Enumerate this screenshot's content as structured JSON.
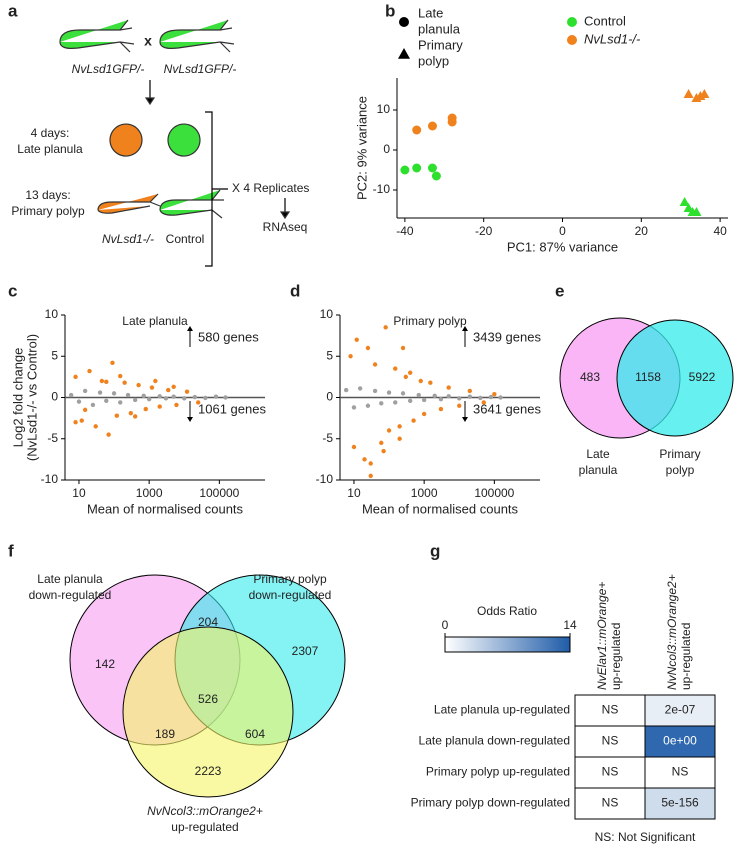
{
  "panel_labels": [
    "a",
    "b",
    "c",
    "d",
    "e",
    "f",
    "g"
  ],
  "schematic": {
    "parents": [
      "NvLsd1GFP/-",
      "NvLsd1GFP/-"
    ],
    "cross": "x",
    "stages": [
      [
        "4 days:",
        "Late planula"
      ],
      [
        "13 days:",
        "Primary polyp"
      ]
    ],
    "genotypes": [
      "NvLsd1-/-",
      "Control"
    ],
    "replicates": "X 4 Replicates",
    "method": "RNAseq"
  },
  "chart_data": [
    {
      "type": "scatter",
      "x_label": "PC1: 87% variance",
      "y_label": "PC2: 9% variance",
      "xlim": [
        -42,
        42
      ],
      "xticks": [
        -40,
        -20,
        0,
        20,
        40
      ],
      "ylim": [
        -17,
        18
      ],
      "yticks": [
        -10,
        0,
        10
      ],
      "marker_legend": [
        {
          "name": [
            "Late",
            "planula"
          ],
          "marker": "circle"
        },
        {
          "name": [
            "Primary",
            "polyp"
          ],
          "marker": "triangle"
        }
      ],
      "series": [
        {
          "name": "Control",
          "color": "#2ee02e",
          "x": [
            -40,
            -37,
            -33,
            -32,
            31,
            32,
            33,
            34
          ],
          "values": [
            -5,
            -4.5,
            -4.5,
            -6.5,
            -13,
            -14.5,
            -15.5,
            -15.5
          ],
          "markers": [
            "circle",
            "circle",
            "circle",
            "circle",
            "triangle",
            "triangle",
            "triangle",
            "triangle"
          ]
        },
        {
          "name": "NvLsd1-/-",
          "color": "#f0821e",
          "x": [
            -37,
            -33,
            -28,
            -28,
            32,
            34,
            35,
            36
          ],
          "values": [
            5,
            6,
            7,
            8,
            14,
            13,
            13.5,
            14
          ],
          "markers": [
            "circle",
            "circle",
            "circle",
            "circle",
            "triangle",
            "triangle",
            "triangle",
            "triangle"
          ]
        }
      ]
    },
    {
      "type": "scatter",
      "title": "Late planula",
      "x_label": "Mean of normalised counts",
      "y_label": [
        "Log2 fold change",
        "(NvLsd1-/- vs Control)"
      ],
      "xscale": "log",
      "xlim": [
        4,
        2000000
      ],
      "xticks": [
        10,
        1000,
        100000
      ],
      "ylim": [
        -10,
        10
      ],
      "yticks": [
        -10,
        -5,
        0,
        5,
        10
      ],
      "reference_line": 0,
      "annotations": [
        {
          "text": "580 genes",
          "arrow": "up"
        },
        {
          "text": "1061 genes",
          "arrow": "down"
        }
      ],
      "series": [
        {
          "color": "#a0a0a0",
          "x": [
            6,
            10,
            15,
            25,
            40,
            60,
            100,
            150,
            250,
            400,
            700,
            1000,
            2000,
            3000,
            5000,
            10000,
            20000,
            40000,
            80000,
            150000
          ],
          "values": [
            0.3,
            -0.5,
            0.8,
            -0.9,
            0.6,
            -0.4,
            0.5,
            -0.6,
            0.3,
            -0.3,
            0.2,
            -0.2,
            0.15,
            -0.1,
            0.1,
            -0.1,
            0.05,
            -0.05,
            0.1,
            0
          ]
        },
        {
          "color": "#f0821e",
          "x": [
            8,
            12,
            20,
            30,
            45,
            70,
            90,
            120,
            200,
            300,
            500,
            800,
            1200,
            2000,
            3500,
            6000,
            12000,
            25000,
            8,
            15,
            60,
            150,
            400,
            1500,
            5000
          ],
          "values": [
            2.5,
            -2.8,
            3.2,
            -3.5,
            2.0,
            -4.5,
            4.2,
            -2.2,
            1.8,
            -1.9,
            1.5,
            -1.4,
            1.2,
            -1.1,
            0.9,
            -0.9,
            0.7,
            -0.6,
            -3,
            -1.5,
            1.9,
            2.6,
            -2.3,
            2.0,
            1.3
          ]
        }
      ]
    },
    {
      "type": "scatter",
      "title": "Primary polyp",
      "x_label": "Mean of normalised counts",
      "xscale": "log",
      "xlim": [
        4,
        2000000
      ],
      "xticks": [
        10,
        1000,
        100000
      ],
      "ylim": [
        -10,
        10
      ],
      "yticks": [
        -10,
        -5,
        0,
        5,
        10
      ],
      "reference_line": 0,
      "annotations": [
        {
          "text": "3439 genes",
          "arrow": "up"
        },
        {
          "text": "3641 genes",
          "arrow": "down"
        }
      ],
      "series": [
        {
          "color": "#a0a0a0",
          "x": [
            6,
            10,
            15,
            25,
            40,
            60,
            100,
            150,
            250,
            400,
            700,
            1000,
            2000,
            3000,
            5000,
            10000,
            20000,
            40000,
            80000,
            150000
          ],
          "values": [
            0.9,
            -1.2,
            1.1,
            -1,
            0.8,
            -0.7,
            0.6,
            -0.6,
            0.5,
            -0.4,
            0.3,
            -0.3,
            0.2,
            -0.2,
            0.15,
            -0.1,
            0.1,
            -0.05,
            0.05,
            0
          ]
        },
        {
          "color": "#f0821e",
          "x": [
            8,
            10,
            12,
            20,
            25,
            30,
            40,
            60,
            80,
            100,
            150,
            200,
            300,
            500,
            800,
            1000,
            1500,
            3000,
            5000,
            10000,
            20000,
            50000,
            100000,
            30,
            70,
            200,
            400,
            250
          ],
          "values": [
            5,
            -6,
            7,
            -7.5,
            6,
            -9.5,
            4,
            -5.5,
            8.5,
            -4,
            3.5,
            -3.5,
            2.5,
            -2.8,
            2,
            -2,
            1.8,
            -1.4,
            1.2,
            -1,
            0.8,
            -0.6,
            0.4,
            -8,
            -6.5,
            -5,
            3,
            6
          ]
        }
      ]
    },
    {
      "type": "heatmap",
      "title": "Odds Ratio",
      "colorbar_lim": [
        0,
        14
      ],
      "colorbar_ticks": [
        0,
        14
      ],
      "colors": [
        "#ffffff",
        "#1f5ca8"
      ],
      "columns": [
        [
          "NvElav1::mOrange+",
          "up-regulated"
        ],
        [
          "NvNcol3::mOrange2+",
          "up-regulated"
        ]
      ],
      "rows": [
        "Late planula up-regulated",
        "Late planula down-regulated",
        "Primary polyp up-regulated",
        "Primary polyp down-regulated"
      ],
      "values": [
        [
          null,
          1.5
        ],
        [
          null,
          13
        ],
        [
          null,
          null
        ],
        [
          null,
          3
        ]
      ],
      "cell_labels": [
        [
          "NS",
          "2e-07"
        ],
        [
          "NS",
          "0e+00"
        ],
        [
          "NS",
          "NS"
        ],
        [
          "NS",
          "5e-156"
        ]
      ],
      "note": "NS: Not Significant"
    }
  ],
  "venn_e": {
    "sets": [
      {
        "name": [
          "Late",
          "planula"
        ],
        "color": "#f79cf2"
      },
      {
        "name": [
          "Primary",
          "polyp"
        ],
        "color": "#33ebeb"
      }
    ],
    "regions": [
      "483",
      "1158",
      "5922"
    ]
  },
  "venn_f": {
    "sets": [
      {
        "name": [
          "Late planula",
          "down-regulated"
        ],
        "color": "#f79cf2"
      },
      {
        "name": [
          "Primary polyp",
          "down-regulated"
        ],
        "color": "#33ebeb"
      },
      {
        "name": [
          "NvNcol3::mOrange2+",
          "up-regulated"
        ],
        "color": "#f5f566"
      }
    ],
    "regions": [
      "142",
      "204",
      "2307",
      "189",
      "526",
      "604",
      "2223"
    ]
  }
}
